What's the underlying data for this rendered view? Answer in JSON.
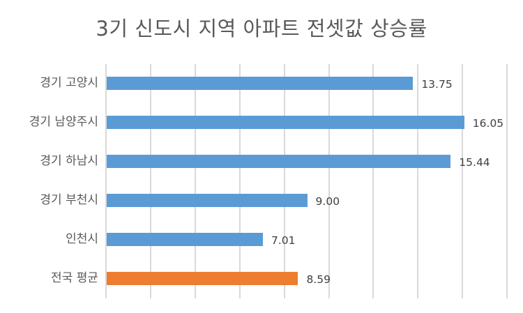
{
  "chart_data": {
    "type": "bar",
    "orientation": "horizontal",
    "title": "3기 신도시 지역 아파트 전셋값 상승률",
    "categories": [
      "경기 고양시",
      "경기 남양주시",
      "경기 하남시",
      "경기 부천시",
      "인천시",
      "전국 평균"
    ],
    "values": [
      13.75,
      16.05,
      15.44,
      9.0,
      7.01,
      8.59
    ],
    "value_labels": [
      "13.75",
      "16.05",
      "15.44",
      "9.00",
      "7.01",
      "8.59"
    ],
    "bar_colors": [
      "#5b9bd5",
      "#5b9bd5",
      "#5b9bd5",
      "#5b9bd5",
      "#5b9bd5",
      "#ed7d31"
    ],
    "xlabel": "",
    "ylabel": "",
    "xlim": [
      0,
      18
    ],
    "x_gridline_step": 2,
    "grid": true,
    "legend": null,
    "x_tick_labels_visible": false
  },
  "colors": {
    "series": "#5b9bd5",
    "highlight": "#ed7d31",
    "grid": "#d9d9d9",
    "text": "#595959"
  }
}
